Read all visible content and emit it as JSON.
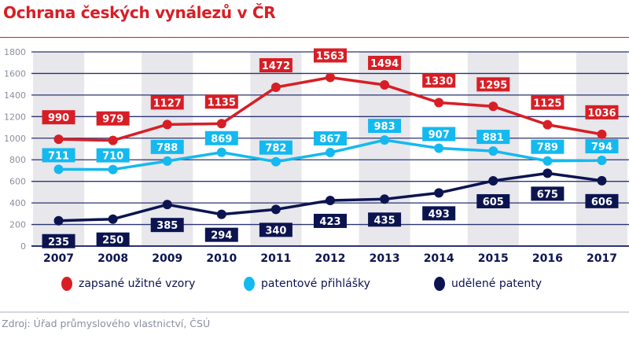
{
  "title": "Ochrana českých vynálezů v ČR",
  "source": "Zdroj: Úřad průmyslového vlastnictví, ČSÚ",
  "chart_data": {
    "type": "line",
    "title": "Ochrana českých vynálezů v ČR",
    "categories": [
      "2007",
      "2008",
      "2009",
      "2010",
      "2011",
      "2012",
      "2013",
      "2014",
      "2015",
      "2016",
      "2017"
    ],
    "ylim": [
      0,
      1800
    ],
    "yticks": [
      0,
      200,
      400,
      600,
      800,
      1000,
      1200,
      1400,
      1600,
      1800
    ],
    "grid": true,
    "legend": "bottom",
    "series": [
      {
        "name": "zapsané užitné vzory",
        "color": "#d81e25",
        "values": [
          990,
          979,
          1127,
          1135,
          1472,
          1563,
          1494,
          1330,
          1295,
          1125,
          1036
        ]
      },
      {
        "name": "patentové přihlášky",
        "color": "#14b9ef",
        "values": [
          711,
          710,
          788,
          869,
          782,
          867,
          983,
          907,
          881,
          789,
          794
        ]
      },
      {
        "name": "udělené patenty",
        "color": "#0c1450",
        "values": [
          235,
          250,
          385,
          294,
          340,
          423,
          435,
          493,
          605,
          675,
          606
        ]
      }
    ]
  }
}
